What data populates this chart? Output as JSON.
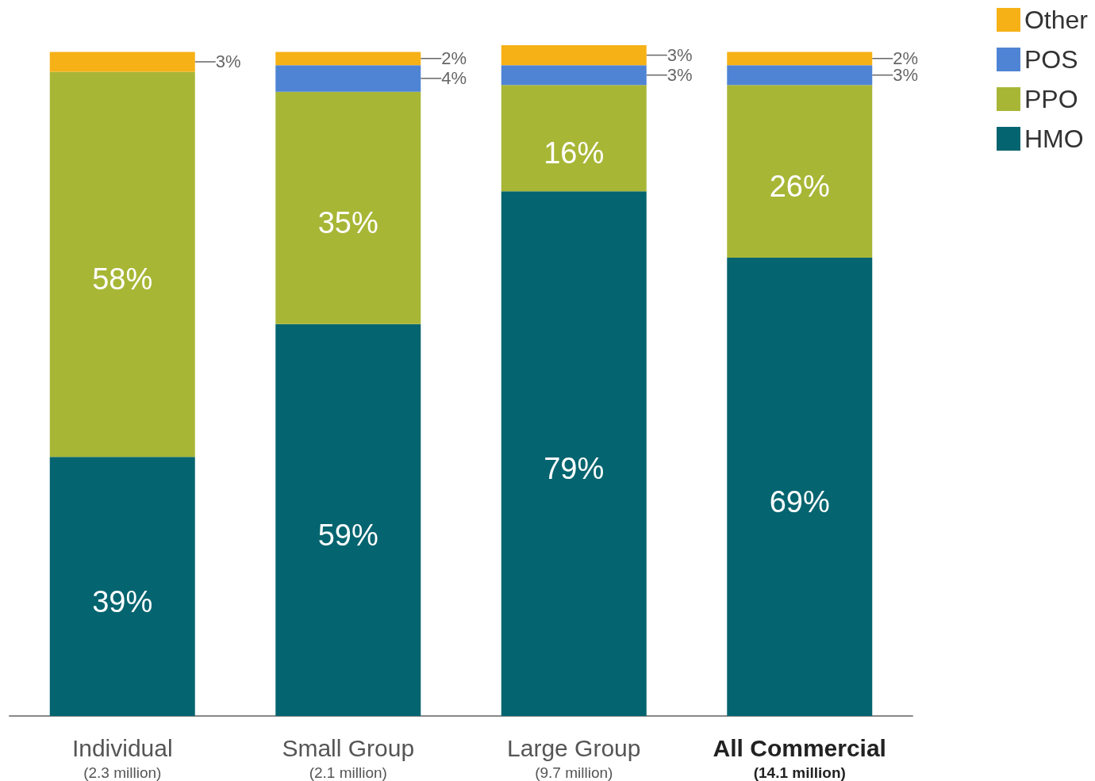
{
  "chart_data": {
    "type": "bar",
    "stacked": true,
    "legend": "top right",
    "grid": false,
    "categories": [
      "Individual\n(2.3 million)",
      "Small Group\n(2.1 million)",
      "Large Group\n(9.7 million)",
      "All Commercial\n(14.1 million)"
    ],
    "series": [
      {
        "name": "HMO",
        "color": "#04646f",
        "values": [
          39,
          59,
          79,
          69
        ],
        "value_labels": [
          "39%",
          "59%",
          "79%",
          "69%"
        ]
      },
      {
        "name": "PPO",
        "color": "#a8b636",
        "values": [
          58,
          35,
          16,
          26
        ],
        "value_labels": [
          "58%",
          "35%",
          "16%",
          "26%"
        ]
      },
      {
        "name": "POS",
        "color": "#4f84d4",
        "values": [
          null,
          4,
          3,
          3
        ],
        "value_labels": [
          null,
          "4%",
          "3%",
          "3%"
        ]
      },
      {
        "name": "Other",
        "color": "#f6b117",
        "values": [
          3,
          2,
          3,
          2
        ],
        "value_labels": [
          "3%",
          "2%",
          "3%",
          "2%"
        ]
      }
    ]
  }
}
